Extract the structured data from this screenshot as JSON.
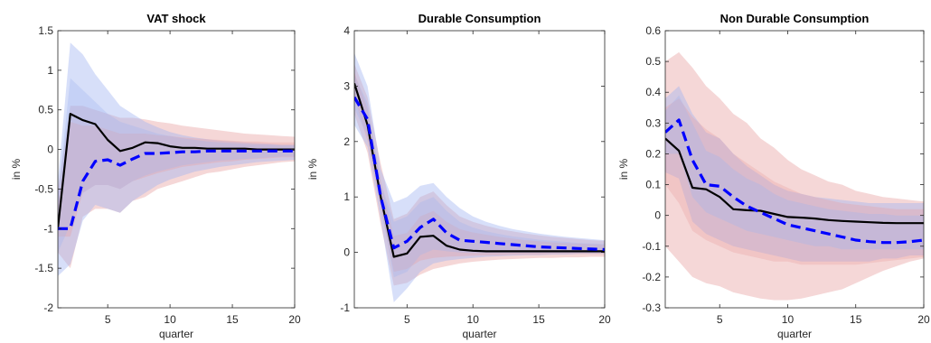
{
  "chart_data": [
    {
      "type": "line",
      "title": "VAT shock",
      "xlabel": "quarter",
      "ylabel": "in %",
      "xlim": [
        1,
        20
      ],
      "ylim": [
        -2,
        1.5
      ],
      "xticks": [
        5,
        10,
        15,
        20
      ],
      "yticks": [
        -2,
        -1.5,
        -1,
        -0.5,
        0,
        0.5,
        1,
        1.5
      ],
      "ytick_labels": [
        "-2",
        "-1.5",
        "-1",
        "-0.5",
        "0",
        "0.5",
        "1",
        "1.5"
      ],
      "grid": false,
      "x": [
        1,
        2,
        3,
        4,
        5,
        6,
        7,
        8,
        9,
        10,
        11,
        12,
        13,
        14,
        15,
        16,
        17,
        18,
        19,
        20
      ],
      "series": [
        {
          "style": "solid",
          "color": "#000000",
          "values": [
            -1.0,
            0.45,
            0.37,
            0.32,
            0.12,
            -0.02,
            0.02,
            0.09,
            0.08,
            0.04,
            0.02,
            0.02,
            0.01,
            0.01,
            0.01,
            0.01,
            0.0,
            0.0,
            0.0,
            0.0
          ]
        },
        {
          "style": "dashed",
          "color": "#0000ff",
          "values": [
            -1.0,
            -1.0,
            -0.4,
            -0.15,
            -0.13,
            -0.2,
            -0.12,
            -0.05,
            -0.05,
            -0.04,
            -0.03,
            -0.03,
            -0.02,
            -0.02,
            -0.02,
            -0.02,
            -0.02,
            -0.02,
            -0.02,
            -0.02
          ]
        }
      ],
      "bands": [
        {
          "color": "#e8a0a0",
          "opacity": 0.42,
          "lower": [
            -1.3,
            -1.5,
            -0.85,
            -0.75,
            -0.75,
            -0.8,
            -0.65,
            -0.6,
            -0.5,
            -0.45,
            -0.4,
            -0.35,
            -0.3,
            -0.28,
            -0.25,
            -0.22,
            -0.2,
            -0.18,
            -0.16,
            -0.15
          ],
          "upper": [
            -0.5,
            0.55,
            0.55,
            0.5,
            0.45,
            0.4,
            0.4,
            0.38,
            0.35,
            0.33,
            0.3,
            0.28,
            0.26,
            0.24,
            0.22,
            0.2,
            0.19,
            0.18,
            0.17,
            0.16
          ]
        },
        {
          "color": "#9fb3f0",
          "opacity": 0.42,
          "lower": [
            -1.6,
            -1.45,
            -0.9,
            -0.7,
            -0.75,
            -0.8,
            -0.65,
            -0.55,
            -0.45,
            -0.38,
            -0.33,
            -0.28,
            -0.25,
            -0.22,
            -0.2,
            -0.18,
            -0.16,
            -0.15,
            -0.14,
            -0.13
          ],
          "upper": [
            -0.4,
            1.35,
            1.2,
            0.95,
            0.75,
            0.55,
            0.45,
            0.35,
            0.28,
            0.22,
            0.18,
            0.15,
            0.13,
            0.11,
            0.1,
            0.09,
            0.08,
            0.07,
            0.06,
            0.06
          ]
        },
        {
          "color": "#e8a0a0",
          "opacity": 0.32,
          "lower": [
            -1.1,
            -1.1,
            -0.55,
            -0.45,
            -0.45,
            -0.5,
            -0.4,
            -0.35,
            -0.3,
            -0.26,
            -0.22,
            -0.2,
            -0.18,
            -0.16,
            -0.15,
            -0.13,
            -0.12,
            -0.11,
            -0.1,
            -0.1
          ],
          "upper": [
            -0.7,
            0.35,
            0.3,
            0.3,
            0.25,
            0.2,
            0.2,
            0.2,
            0.18,
            0.17,
            0.15,
            0.14,
            0.13,
            0.12,
            0.11,
            0.1,
            0.1,
            0.09,
            0.09,
            0.09
          ]
        },
        {
          "color": "#9fb3f0",
          "opacity": 0.32,
          "lower": [
            -1.3,
            -0.95,
            -0.55,
            -0.45,
            -0.45,
            -0.5,
            -0.4,
            -0.33,
            -0.28,
            -0.24,
            -0.2,
            -0.18,
            -0.16,
            -0.14,
            -0.13,
            -0.12,
            -0.11,
            -0.1,
            -0.09,
            -0.09
          ],
          "upper": [
            -0.6,
            0.9,
            0.75,
            0.6,
            0.45,
            0.35,
            0.3,
            0.25,
            0.2,
            0.17,
            0.14,
            0.12,
            0.1,
            0.09,
            0.08,
            0.07,
            0.06,
            0.06,
            0.05,
            0.05
          ]
        }
      ]
    },
    {
      "type": "line",
      "title": "Durable Consumption",
      "xlabel": "quarter",
      "ylabel": "in %",
      "xlim": [
        1,
        20
      ],
      "ylim": [
        -1,
        4
      ],
      "xticks": [
        5,
        10,
        15,
        20
      ],
      "yticks": [
        -1,
        0,
        1,
        2,
        3,
        4
      ],
      "ytick_labels": [
        "-1",
        "0",
        "1",
        "2",
        "3",
        "4"
      ],
      "grid": false,
      "x": [
        1,
        2,
        3,
        4,
        5,
        6,
        7,
        8,
        9,
        10,
        11,
        12,
        13,
        14,
        15,
        16,
        17,
        18,
        19,
        20
      ],
      "series": [
        {
          "style": "solid",
          "color": "#000000",
          "values": [
            3.05,
            2.3,
            1.0,
            -0.08,
            -0.02,
            0.28,
            0.3,
            0.12,
            0.05,
            0.03,
            0.02,
            0.02,
            0.02,
            0.02,
            0.02,
            0.02,
            0.02,
            0.02,
            0.02,
            0.02
          ]
        },
        {
          "style": "dashed",
          "color": "#0000ff",
          "values": [
            2.8,
            2.4,
            1.0,
            0.08,
            0.2,
            0.45,
            0.6,
            0.35,
            0.22,
            0.2,
            0.18,
            0.16,
            0.14,
            0.12,
            0.1,
            0.09,
            0.08,
            0.07,
            0.06,
            0.05
          ]
        }
      ],
      "bands": [
        {
          "color": "#e8a0a0",
          "opacity": 0.42,
          "lower": [
            2.5,
            1.8,
            0.5,
            -0.6,
            -0.55,
            -0.4,
            -0.3,
            -0.25,
            -0.2,
            -0.17,
            -0.15,
            -0.13,
            -0.12,
            -0.11,
            -0.1,
            -0.1,
            -0.09,
            -0.09,
            -0.08,
            -0.08
          ],
          "upper": [
            3.4,
            2.8,
            1.6,
            0.6,
            0.7,
            1.0,
            1.1,
            0.85,
            0.65,
            0.55,
            0.48,
            0.42,
            0.38,
            0.34,
            0.31,
            0.28,
            0.26,
            0.24,
            0.22,
            0.21
          ]
        },
        {
          "color": "#9fb3f0",
          "opacity": 0.42,
          "lower": [
            2.3,
            1.9,
            0.6,
            -0.9,
            -0.65,
            -0.35,
            -0.2,
            -0.15,
            -0.12,
            -0.1,
            -0.08,
            -0.07,
            -0.06,
            -0.05,
            -0.05,
            -0.04,
            -0.04,
            -0.03,
            -0.03,
            -0.03
          ],
          "upper": [
            3.6,
            3.0,
            1.5,
            0.9,
            1.0,
            1.2,
            1.25,
            1.0,
            0.8,
            0.65,
            0.55,
            0.48,
            0.42,
            0.38,
            0.34,
            0.31,
            0.28,
            0.26,
            0.24,
            0.22
          ]
        },
        {
          "color": "#e8a0a0",
          "opacity": 0.32,
          "lower": [
            2.8,
            2.0,
            0.8,
            -0.35,
            -0.3,
            -0.15,
            -0.1,
            -0.08,
            -0.07,
            -0.06,
            -0.05,
            -0.05,
            -0.04,
            -0.04,
            -0.04,
            -0.03,
            -0.03,
            -0.03,
            -0.03,
            -0.03
          ],
          "upper": [
            3.25,
            2.6,
            1.3,
            0.3,
            0.35,
            0.65,
            0.75,
            0.55,
            0.42,
            0.36,
            0.32,
            0.28,
            0.25,
            0.22,
            0.2,
            0.18,
            0.17,
            0.16,
            0.15,
            0.14
          ]
        },
        {
          "color": "#9fb3f0",
          "opacity": 0.32,
          "lower": [
            2.6,
            2.1,
            0.85,
            -0.45,
            -0.35,
            -0.05,
            0.05,
            0.02,
            0.0,
            -0.01,
            -0.01,
            -0.01,
            -0.01,
            -0.01,
            -0.01,
            -0.01,
            -0.01,
            -0.01,
            -0.01,
            -0.01
          ],
          "upper": [
            3.2,
            2.7,
            1.25,
            0.55,
            0.65,
            0.9,
            1.0,
            0.75,
            0.55,
            0.45,
            0.38,
            0.33,
            0.29,
            0.26,
            0.23,
            0.21,
            0.19,
            0.17,
            0.16,
            0.15
          ]
        }
      ]
    },
    {
      "type": "line",
      "title": "Non Durable Consumption",
      "xlabel": "quarter",
      "ylabel": "in %",
      "xlim": [
        1,
        20
      ],
      "ylim": [
        -0.3,
        0.6
      ],
      "xticks": [
        5,
        10,
        15,
        20
      ],
      "yticks": [
        -0.3,
        -0.2,
        -0.1,
        0,
        0.1,
        0.2,
        0.3,
        0.4,
        0.5,
        0.6
      ],
      "ytick_labels": [
        "-0.3",
        "-0.2",
        "-0.1",
        "0",
        "0.1",
        "0.2",
        "0.3",
        "0.4",
        "0.5",
        "0.6"
      ],
      "grid": false,
      "x": [
        1,
        2,
        3,
        4,
        5,
        6,
        7,
        8,
        9,
        10,
        11,
        12,
        13,
        14,
        15,
        16,
        17,
        18,
        19,
        20
      ],
      "series": [
        {
          "style": "solid",
          "color": "#000000",
          "values": [
            0.25,
            0.21,
            0.09,
            0.085,
            0.06,
            0.02,
            0.017,
            0.015,
            0.005,
            -0.005,
            -0.007,
            -0.01,
            -0.015,
            -0.018,
            -0.02,
            -0.022,
            -0.024,
            -0.025,
            -0.025,
            -0.025
          ]
        },
        {
          "style": "dashed",
          "color": "#0000ff",
          "values": [
            0.27,
            0.31,
            0.18,
            0.1,
            0.095,
            0.06,
            0.03,
            0.01,
            -0.01,
            -0.03,
            -0.04,
            -0.05,
            -0.06,
            -0.07,
            -0.08,
            -0.085,
            -0.088,
            -0.088,
            -0.085,
            -0.08
          ]
        }
      ],
      "bands": [
        {
          "color": "#e8a0a0",
          "opacity": 0.42,
          "lower": [
            -0.1,
            -0.15,
            -0.2,
            -0.22,
            -0.23,
            -0.25,
            -0.26,
            -0.27,
            -0.275,
            -0.275,
            -0.27,
            -0.26,
            -0.25,
            -0.24,
            -0.22,
            -0.2,
            -0.18,
            -0.165,
            -0.15,
            -0.14
          ],
          "upper": [
            0.5,
            0.53,
            0.48,
            0.42,
            0.38,
            0.33,
            0.3,
            0.25,
            0.22,
            0.18,
            0.15,
            0.13,
            0.11,
            0.1,
            0.08,
            0.07,
            0.06,
            0.055,
            0.05,
            0.045
          ]
        },
        {
          "color": "#9fb3f0",
          "opacity": 0.42,
          "lower": [
            0.14,
            0.12,
            -0.02,
            -0.06,
            -0.08,
            -0.1,
            -0.11,
            -0.12,
            -0.13,
            -0.14,
            -0.15,
            -0.15,
            -0.15,
            -0.15,
            -0.15,
            -0.15,
            -0.14,
            -0.14,
            -0.13,
            -0.13
          ],
          "upper": [
            0.38,
            0.42,
            0.33,
            0.27,
            0.25,
            0.2,
            0.16,
            0.13,
            0.1,
            0.08,
            0.07,
            0.06,
            0.055,
            0.05,
            0.045,
            0.04,
            0.04,
            0.04,
            0.04,
            0.04
          ]
        },
        {
          "color": "#e8a0a0",
          "opacity": 0.32,
          "lower": [
            0.1,
            0.04,
            -0.05,
            -0.08,
            -0.1,
            -0.12,
            -0.13,
            -0.14,
            -0.15,
            -0.15,
            -0.16,
            -0.16,
            -0.16,
            -0.16,
            -0.16,
            -0.155,
            -0.15,
            -0.145,
            -0.14,
            -0.135
          ],
          "upper": [
            0.35,
            0.38,
            0.32,
            0.28,
            0.25,
            0.2,
            0.17,
            0.14,
            0.11,
            0.09,
            0.07,
            0.06,
            0.05,
            0.04,
            0.035,
            0.03,
            0.025,
            0.02,
            0.02,
            0.02
          ]
        },
        {
          "color": "#9fb3f0",
          "opacity": 0.32,
          "lower": [
            0.2,
            0.2,
            0.06,
            0.01,
            -0.01,
            -0.03,
            -0.05,
            -0.06,
            -0.07,
            -0.08,
            -0.09,
            -0.1,
            -0.1,
            -0.11,
            -0.11,
            -0.11,
            -0.11,
            -0.11,
            -0.11,
            -0.11
          ],
          "upper": [
            0.34,
            0.39,
            0.3,
            0.21,
            0.19,
            0.15,
            0.12,
            0.1,
            0.07,
            0.05,
            0.04,
            0.03,
            0.02,
            0.015,
            0.01,
            0.005,
            0.005,
            0.0,
            0.0,
            0.0
          ]
        }
      ]
    }
  ]
}
